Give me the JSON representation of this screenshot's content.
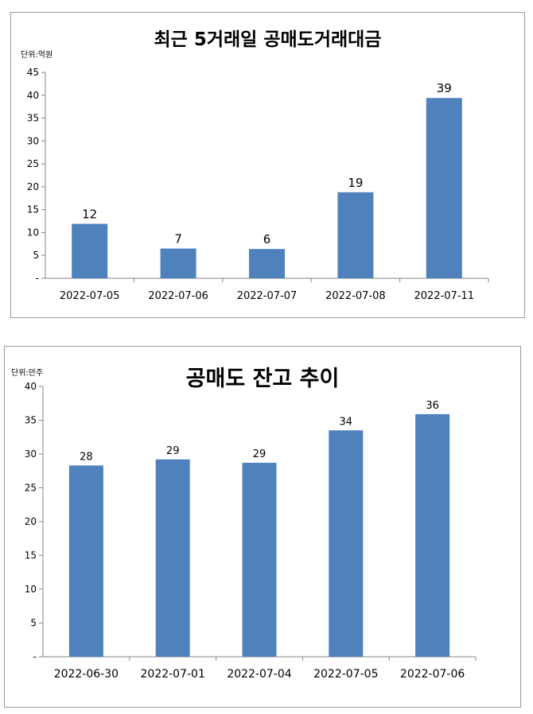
{
  "colors": {
    "bar": "#4F81BD",
    "axis": "#868686",
    "text": "#000000"
  },
  "charts": [
    {
      "title": "최근 5거래일 공매도거래대금",
      "unit": "단위:억원",
      "chart_data": {
        "type": "bar",
        "title": "최근 5거래일 공매도거래대금",
        "categories": [
          "2022-07-05",
          "2022-07-06",
          "2022-07-07",
          "2022-07-08",
          "2022-07-11"
        ],
        "values": [
          11.9,
          6.5,
          6.4,
          18.8,
          39.4
        ],
        "value_labels": [
          "12",
          "7",
          "6",
          "19",
          "39"
        ],
        "yticks": [
          "-",
          "5",
          "10",
          "15",
          "20",
          "25",
          "30",
          "35",
          "40",
          "45"
        ],
        "ylim": [
          0,
          45
        ],
        "grid": false,
        "legend": "none"
      }
    },
    {
      "title": "공매도 잔고 추이",
      "unit": "단위:만주",
      "chart_data": {
        "type": "bar",
        "title": "공매도 잔고 추이",
        "categories": [
          "2022-06-30",
          "2022-07-01",
          "2022-07-04",
          "2022-07-05",
          "2022-07-06"
        ],
        "values": [
          28.3,
          29.2,
          28.7,
          33.5,
          35.9
        ],
        "value_labels": [
          "28",
          "29",
          "29",
          "34",
          "36"
        ],
        "yticks": [
          "-",
          "5",
          "10",
          "15",
          "20",
          "25",
          "30",
          "35",
          "40"
        ],
        "ylim": [
          0,
          40
        ],
        "grid": false,
        "legend": "none"
      }
    }
  ]
}
